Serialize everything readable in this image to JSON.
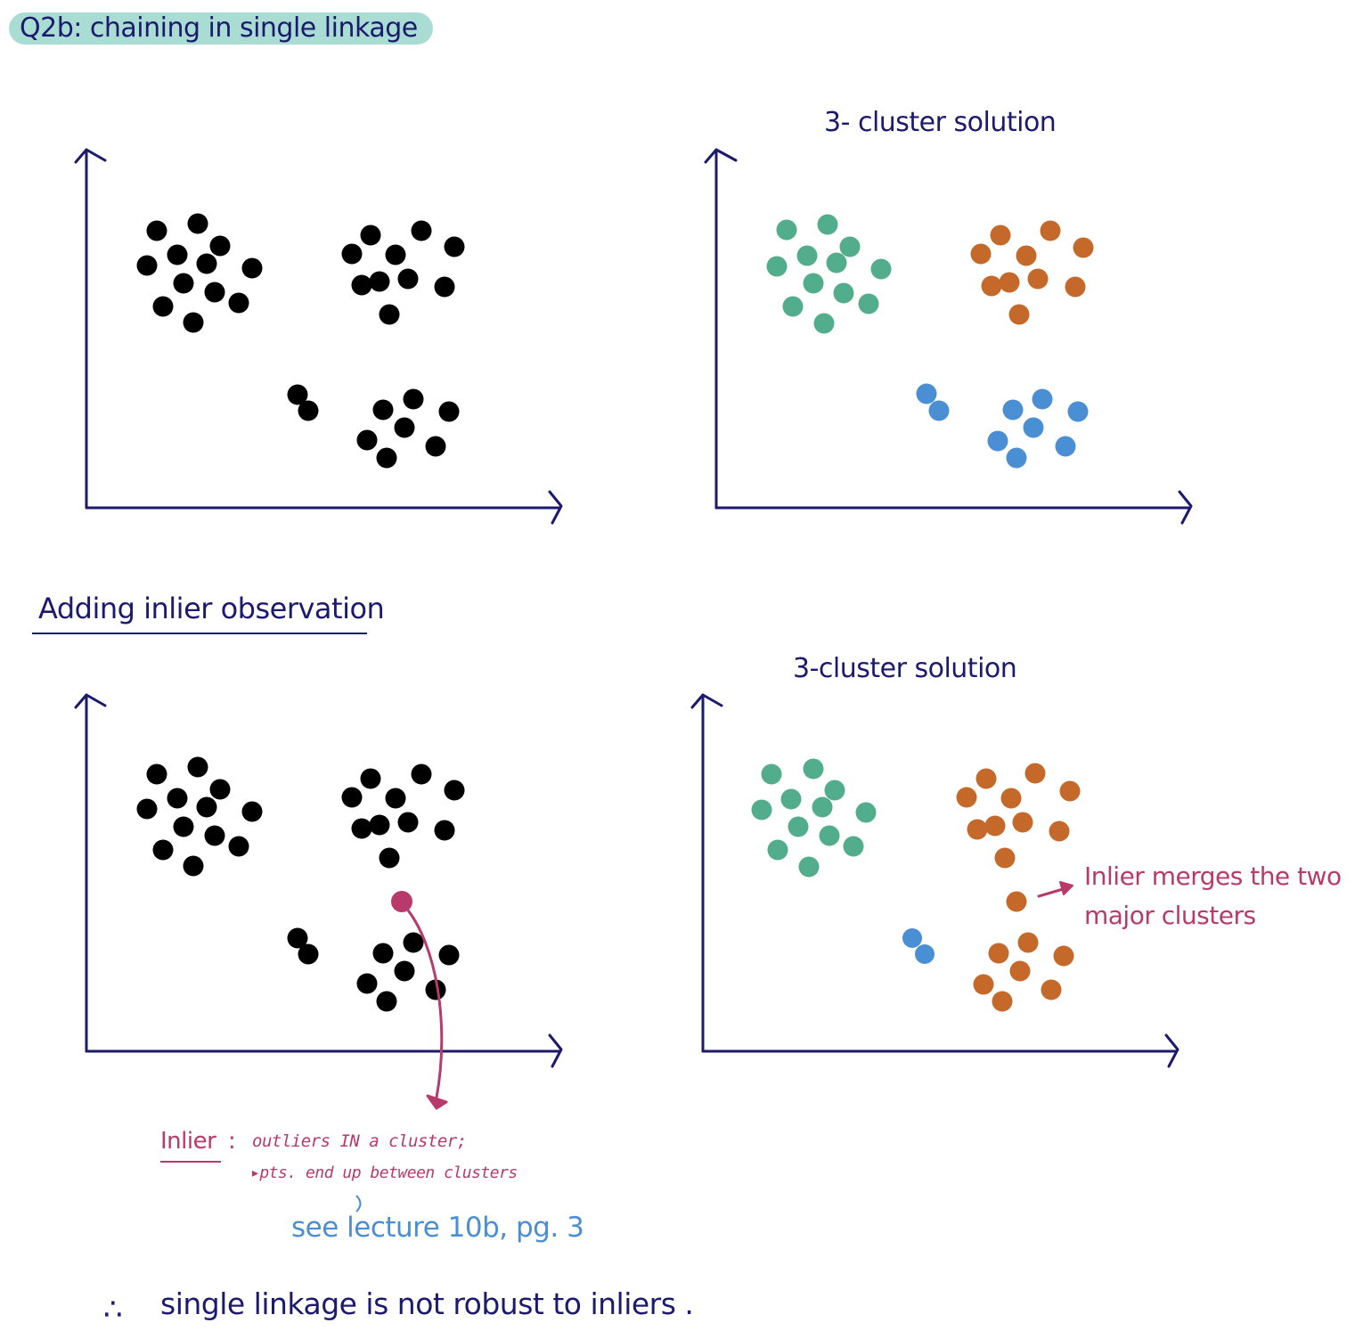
{
  "title": "Q2b: chaining in single linkage",
  "panels": {
    "top_right_label": "3- cluster solution",
    "bottom_right_label": "3-cluster solution"
  },
  "section_heading": "Adding inlier observation",
  "annotations": {
    "inlier_merges": "Inlier merges the two\nmajor clusters",
    "inlier_term": "Inlier",
    "inlier_colon": ":",
    "inlier_definition": "outliers IN a cluster;",
    "inlier_detail": "▸pts. end up between clusters",
    "lecture_ref": "see lecture 10b, pg. 3",
    "conclusion_mark": "∴",
    "conclusion": "single linkage is not robust to inliers ."
  },
  "colors": {
    "ink": "#1c1a6e",
    "black_points": "#000000",
    "green_cluster": "#52ad8c",
    "orange_cluster": "#c4692a",
    "blue_cluster": "#4a8fd4",
    "inlier": "#b83a6a",
    "title_highlight": "#a9dcd3"
  },
  "icons": {
    "inlier_arrow": "curved-arrow-icon",
    "note_arrow": "arrow-right-icon"
  }
}
